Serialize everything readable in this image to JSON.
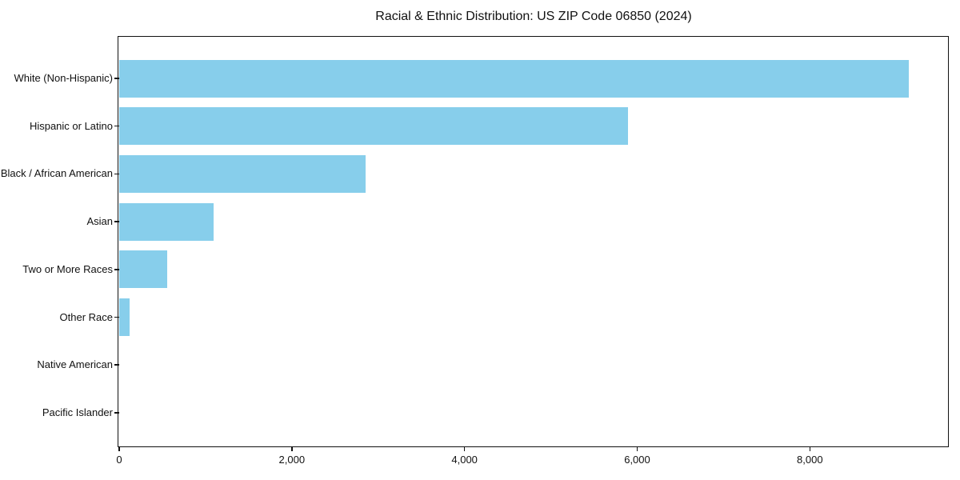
{
  "title": "Racial & Ethnic Distribution: US ZIP Code 06850 (2024)",
  "chart_data": {
    "type": "bar",
    "orientation": "horizontal",
    "title": "Racial & Ethnic Distribution: US ZIP Code 06850 (2024)",
    "categories": [
      "White (Non-Hispanic)",
      "Hispanic or Latino",
      "Black / African American",
      "Asian",
      "Two or More Races",
      "Other Race",
      "Native American",
      "Pacific Islander"
    ],
    "values": [
      9150,
      5890,
      2850,
      1090,
      560,
      120,
      0,
      0
    ],
    "xlabel": "",
    "ylabel": "",
    "xlim": [
      0,
      9600
    ],
    "x_ticks": [
      0,
      2000,
      4000,
      6000,
      8000
    ],
    "x_tick_labels": [
      "0",
      "2,000",
      "4,000",
      "6,000",
      "8,000"
    ],
    "bar_color": "#87CEEB",
    "axis_color": "#111111",
    "background_color": "#ffffff",
    "grid": false,
    "legend": "none"
  }
}
